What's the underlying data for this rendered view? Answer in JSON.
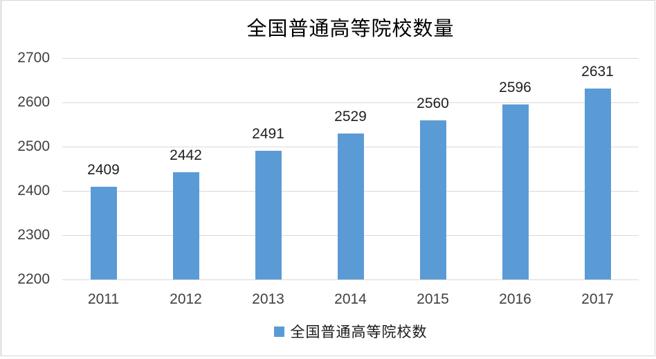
{
  "chart_data": {
    "type": "bar",
    "title": "全国普通高等院校数量",
    "categories": [
      "2011",
      "2012",
      "2013",
      "2014",
      "2015",
      "2016",
      "2017"
    ],
    "series": [
      {
        "name": "全国普通高等院校数",
        "values": [
          2409,
          2442,
          2491,
          2529,
          2560,
          2596,
          2631
        ]
      }
    ],
    "xlabel": "",
    "ylabel": "",
    "ylim": [
      2200,
      2700
    ],
    "ytick_step": 100,
    "ytick_labels": [
      "2700",
      "2600",
      "2500",
      "2400",
      "2300",
      "2200"
    ],
    "grid": true,
    "data_labels_shown": true,
    "legend_position": "bottom",
    "colors": {
      "bar": "#5b9bd5",
      "gridline": "#d9d9d9",
      "axis_text": "#404040",
      "data_label_text": "#1f1f1f",
      "title_text": "#000000",
      "frame_border": "#d6d6d6"
    }
  },
  "legend": {
    "label": "全国普通高等院校数",
    "swatch_color": "#5b9bd5"
  }
}
